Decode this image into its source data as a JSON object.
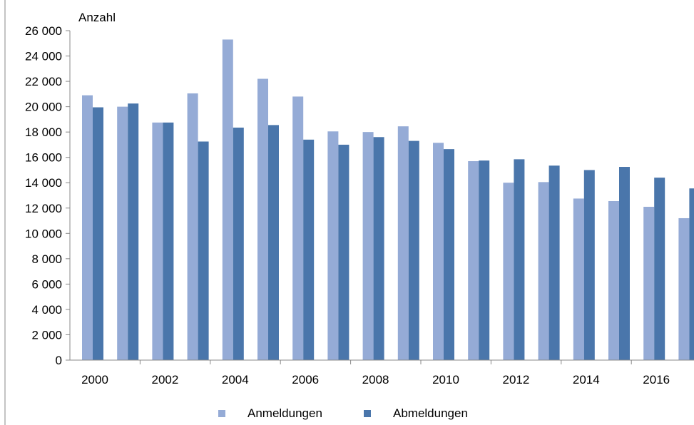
{
  "chart_data": {
    "type": "bar",
    "ylabel": "Anzahl",
    "ylim": [
      0,
      26000
    ],
    "y_ticks": [
      "0",
      "2 000",
      "4 000",
      "6 000",
      "8 000",
      "10 000",
      "12 000",
      "14 000",
      "16 000",
      "18 000",
      "20 000",
      "22 000",
      "24 000",
      "26 000"
    ],
    "categories": [
      "2000",
      "2001",
      "2002",
      "2003",
      "2004",
      "2005",
      "2006",
      "2007",
      "2008",
      "2009",
      "2010",
      "2011",
      "2012",
      "2013",
      "2014",
      "2015",
      "2016",
      "2017"
    ],
    "x_tick_labels": [
      "2000",
      "2002",
      "2004",
      "2006",
      "2008",
      "2010",
      "2012",
      "2014",
      "2016"
    ],
    "series": [
      {
        "name": "Anmeldungen",
        "color": "#95abd6",
        "values": [
          20900,
          20000,
          18750,
          21050,
          25300,
          22200,
          20800,
          18050,
          18000,
          18450,
          17150,
          15700,
          14000,
          14050,
          12750,
          12550,
          12100,
          11200
        ]
      },
      {
        "name": "Abmeldungen",
        "color": "#4a76ab",
        "values": [
          19950,
          20250,
          18750,
          17250,
          18350,
          18550,
          17400,
          17000,
          17600,
          17300,
          16650,
          15750,
          15850,
          15350,
          15000,
          15250,
          14400,
          13550
        ]
      }
    ],
    "grid": false,
    "legend": "bottom-center"
  }
}
